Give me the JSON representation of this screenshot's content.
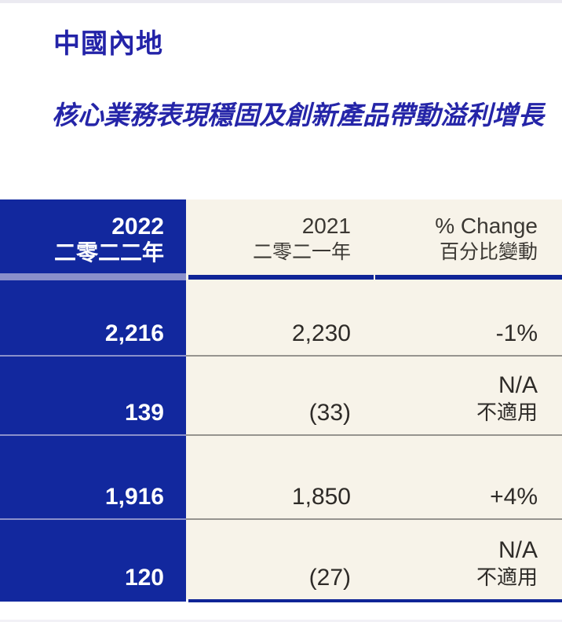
{
  "page": {
    "title": "中國內地",
    "subtitle": "核心業務表現穩固及創新產品帶動溢利增長"
  },
  "table": {
    "header": {
      "col2022": {
        "line1": "2022",
        "line2": "二零二二年"
      },
      "col2021": {
        "line1": "2021",
        "line2": "二零二一年"
      },
      "colChange": {
        "line1": "% Change",
        "line2": "百分比變動"
      }
    },
    "rows": [
      {
        "v2022": "2,216",
        "v2021": "2,230",
        "change_l1": "-1%",
        "change_l2": ""
      },
      {
        "v2022": "139",
        "v2021": "(33)",
        "change_l1": "N/A",
        "change_l2": "不適用"
      },
      {
        "v2022": "1,916",
        "v2021": "1,850",
        "change_l1": "+4%",
        "change_l2": ""
      },
      {
        "v2022": "120",
        "v2021": "(27)",
        "change_l1": "N/A",
        "change_l2": "不適用"
      }
    ]
  },
  "colors": {
    "accent_blue": "#12289e",
    "dark_bar_blue": "#0f2496",
    "periwinkle_separator": "#8a90cb",
    "cream_background": "#f7f3e9",
    "title_blue": "#2323a8",
    "row_separator_gray": "#96948f"
  }
}
